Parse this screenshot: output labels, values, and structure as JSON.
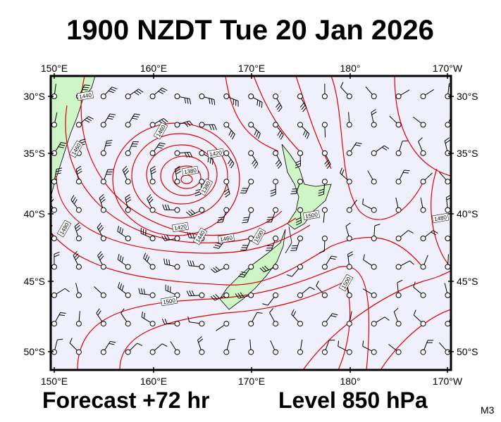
{
  "header": {
    "title": "1900 NZDT Tue 20 Jan 2026"
  },
  "map": {
    "lon_labels": [
      "150°E",
      "160°E",
      "170°E",
      "180°",
      "170°W"
    ],
    "lat_labels": [
      "30°S",
      "35°S",
      "40°S",
      "45°S",
      "50°S"
    ],
    "contour_labels": [
      "1440",
      "1460",
      "1420",
      "1380",
      "1380",
      "1460",
      "1420",
      "1440",
      "1460",
      "1480",
      "1500",
      "1500",
      "1500",
      "1500",
      "1480"
    ]
  },
  "footer": {
    "forecast": "Forecast +72 hr",
    "level": "Level 850 hPa",
    "code": "M3"
  }
}
